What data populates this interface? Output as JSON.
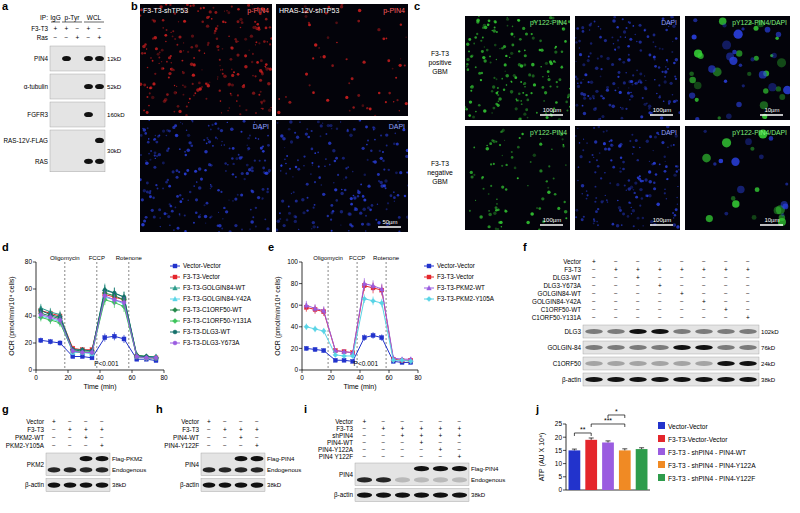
{
  "panel_letters": [
    "a",
    "b",
    "c",
    "d",
    "e",
    "f",
    "g",
    "h",
    "i",
    "j"
  ],
  "blots": [
    {
      "header_prefix": "IP:",
      "groups": [
        {
          "label": "IgG",
          "span": 1
        },
        {
          "label": "p-Tyr",
          "span": 2
        },
        {
          "label": "WCL",
          "span": 2
        }
      ],
      "conditions": [
        {
          "label": "F3-T3",
          "marks": [
            "+",
            "+",
            "−",
            "+",
            "−"
          ]
        },
        {
          "label": "Ras",
          "marks": [
            "−",
            "−",
            "+",
            "−",
            "+"
          ]
        }
      ],
      "rows": [
        {
          "left": [
            "PIN4"
          ],
          "right": [
            "12kD"
          ]
        },
        {
          "left": [
            "α-tubulin"
          ],
          "right": [
            "52kD"
          ]
        },
        {
          "left": [
            "FGFR3"
          ],
          "right": [
            "160kD"
          ]
        },
        {
          "left": [
            "RAS-12V-FLAG",
            "RAS"
          ],
          "right": [
            "30kD"
          ]
        }
      ]
    },
    {
      "conditions": [
        {
          "label": "Vector",
          "marks": [
            "+",
            "−",
            "−",
            "−",
            "−",
            "−",
            "−",
            "−"
          ]
        },
        {
          "label": "F3-T3",
          "marks": [
            "−",
            "+",
            "+",
            "+",
            "+",
            "+",
            "+",
            "+"
          ]
        },
        {
          "label": "DLG3-WT",
          "marks": [
            "−",
            "−",
            "+",
            "−",
            "−",
            "−",
            "−",
            "−"
          ]
        },
        {
          "label": "DLG3-Y673A",
          "marks": [
            "−",
            "−",
            "−",
            "+",
            "−",
            "−",
            "−",
            "−"
          ]
        },
        {
          "label": "GOLGIN84-WT",
          "marks": [
            "−",
            "−",
            "−",
            "−",
            "+",
            "−",
            "−",
            "−"
          ]
        },
        {
          "label": "GOLGIN84-Y42A",
          "marks": [
            "−",
            "−",
            "−",
            "−",
            "−",
            "+",
            "−",
            "−"
          ]
        },
        {
          "label": "C1ORF50-WT",
          "marks": [
            "−",
            "−",
            "−",
            "−",
            "−",
            "−",
            "+",
            "−"
          ]
        },
        {
          "label": "C1ORF50-Y131A",
          "marks": [
            "−",
            "−",
            "−",
            "−",
            "−",
            "−",
            "−",
            "+"
          ]
        }
      ],
      "rows": [
        {
          "left": [
            "DLG3"
          ],
          "right": [
            "102kD"
          ]
        },
        {
          "left": [
            "GOLGIN-84"
          ],
          "right": [
            "76kD"
          ]
        },
        {
          "left": [
            "C1ORF50"
          ],
          "right": [
            "24kD"
          ]
        },
        {
          "left": [
            "β-actin"
          ],
          "right": [
            "38kD"
          ]
        }
      ]
    },
    {
      "conditions": [
        {
          "label": "Vector",
          "marks": [
            "+",
            "−",
            "−",
            "−"
          ]
        },
        {
          "label": "F3-T3",
          "marks": [
            "−",
            "+",
            "+",
            "+"
          ]
        },
        {
          "label": "PKM2-WT",
          "marks": [
            "−",
            "−",
            "+",
            "−"
          ]
        },
        {
          "label": "PKM2-Y105A",
          "marks": [
            "−",
            "−",
            "−",
            "+"
          ]
        }
      ],
      "rows": [
        {
          "left": [
            "PKM2"
          ],
          "right": [
            "Flag-PKM2",
            "Endogenous"
          ]
        },
        {
          "left": [
            "β-actin"
          ],
          "right": [
            "38kD"
          ]
        }
      ]
    },
    {
      "conditions": [
        {
          "label": "Vector",
          "marks": [
            "+",
            "−",
            "−",
            "−"
          ]
        },
        {
          "label": "F3-T3",
          "marks": [
            "−",
            "+",
            "+",
            "+"
          ]
        },
        {
          "label": "PIN4-WT",
          "marks": [
            "−",
            "−",
            "+",
            "−"
          ]
        },
        {
          "label": "PIN4-Y122F",
          "marks": [
            "−",
            "−",
            "−",
            "+"
          ]
        }
      ],
      "rows": [
        {
          "left": [
            "PIN4"
          ],
          "right": [
            "Flag-PIN4",
            "Endogenous"
          ]
        },
        {
          "left": [
            "β-actin"
          ],
          "right": [
            "38kD"
          ]
        }
      ]
    },
    {
      "conditions": [
        {
          "label": "Vector",
          "marks": [
            "+",
            "−",
            "−",
            "−",
            "−",
            "−"
          ]
        },
        {
          "label": "F3-T3",
          "marks": [
            "−",
            "+",
            "+",
            "+",
            "+",
            "+"
          ]
        },
        {
          "label": "shPIN4",
          "marks": [
            "−",
            "−",
            "+",
            "+",
            "+",
            "+"
          ]
        },
        {
          "label": "PIN4-WT",
          "marks": [
            "−",
            "−",
            "−",
            "+",
            "−",
            "−"
          ]
        },
        {
          "label": "PIN4-Y122A",
          "marks": [
            "−",
            "−",
            "−",
            "−",
            "+",
            "−"
          ]
        },
        {
          "label": "PIN4 Y122F",
          "marks": [
            "−",
            "−",
            "−",
            "−",
            "−",
            "+"
          ]
        }
      ],
      "rows": [
        {
          "left": [
            "PIN4"
          ],
          "right": [
            "Flag-PIN4",
            "Endogenous"
          ]
        },
        {
          "left": [
            "β-actin"
          ],
          "right": [
            "38kD"
          ]
        }
      ]
    }
  ],
  "images": {
    "b": {
      "columns": [
        "F3-T3-shTP53",
        "HRAS-12V-shTP53"
      ],
      "rows": [
        {
          "stain": "p-PIN4",
          "colors": [
            "#d42020"
          ]
        },
        {
          "stain": "DAPI",
          "colors": [
            "#2a40e0"
          ]
        }
      ],
      "scale_bar": "50µm"
    },
    "c": {
      "rows": [
        "F3-T3 positive GBM",
        "F3-T3 negative GBM"
      ],
      "columns": [
        {
          "stain": "pY122-PIN4",
          "colors": [
            "#35d035"
          ],
          "scale_bar": "100µm"
        },
        {
          "stain": "DAPI",
          "colors": [
            "#2a40e0"
          ],
          "scale_bar": "100µm"
        },
        {
          "stain": "pY122-PIN4/DAPI",
          "colors": [
            "#35d035",
            "#2a40e0"
          ],
          "scale_bar": "10µm"
        }
      ]
    }
  },
  "chart_data": [
    {
      "type": "line",
      "xlabel": "Time (min)",
      "ylabel": "OCR (pmol/min/10⁴ cells)",
      "x": [
        3,
        9,
        15,
        23,
        29,
        35,
        43,
        49,
        55,
        63,
        69,
        75
      ],
      "xlim": [
        0,
        80
      ],
      "xticks": [
        0,
        20,
        40,
        60,
        80
      ],
      "ylim": [
        0,
        80
      ],
      "yticks": [
        0,
        20,
        40,
        60,
        80
      ],
      "injections": [
        {
          "label": "Oligomycin",
          "x": 18
        },
        {
          "label": "FCCP",
          "x": 38
        },
        {
          "label": "Rotenone",
          "x": 58
        }
      ],
      "stat_label": "P<0.001",
      "legend": "right",
      "series": [
        {
          "name": "Vector-Vector",
          "color": "#2233cc",
          "marker": "square",
          "values": [
            22,
            21,
            20,
            10,
            10,
            9,
            24,
            25,
            23,
            8,
            8,
            7
          ],
          "errors": [
            2,
            2,
            2,
            1,
            1,
            1,
            3,
            3,
            3,
            1,
            1,
            1
          ]
        },
        {
          "name": "F3-T3-Vector",
          "color": "#e4262c",
          "marker": "square",
          "values": [
            44,
            42,
            40,
            16,
            15,
            15,
            56,
            54,
            52,
            10,
            9,
            9
          ],
          "errors": [
            3,
            3,
            3,
            2,
            2,
            2,
            4,
            4,
            4,
            2,
            2,
            2
          ]
        },
        {
          "name": "F3-T3-GOLGIN84-WT",
          "color": "#2e9c8c",
          "marker": "triangle",
          "values": [
            46,
            43,
            41,
            14,
            13,
            13,
            60,
            57,
            54,
            11,
            10,
            10
          ],
          "errors": [
            3,
            3,
            3,
            2,
            2,
            2,
            4,
            4,
            4,
            2,
            2,
            2
          ]
        },
        {
          "name": "F3-T3-GOLGIN84-Y42A",
          "color": "#58d4e6",
          "marker": "triangle",
          "values": [
            40,
            38,
            36,
            13,
            13,
            12,
            54,
            52,
            49,
            10,
            9,
            9
          ],
          "errors": [
            3,
            3,
            3,
            2,
            2,
            2,
            4,
            4,
            4,
            2,
            2,
            2
          ]
        },
        {
          "name": "F3-T3-C1ORF50-WT",
          "color": "#23884a",
          "marker": "diamond",
          "values": [
            42,
            40,
            38,
            15,
            14,
            14,
            57,
            55,
            52,
            11,
            10,
            9
          ],
          "errors": [
            3,
            3,
            3,
            2,
            2,
            2,
            4,
            4,
            4,
            2,
            2,
            2
          ]
        },
        {
          "name": "F3-T3-C1ORF50-Y131A",
          "color": "#3cc45a",
          "marker": "diamond",
          "values": [
            39,
            37,
            35,
            14,
            13,
            13,
            52,
            50,
            47,
            10,
            9,
            9
          ],
          "errors": [
            3,
            3,
            3,
            2,
            2,
            2,
            4,
            4,
            4,
            2,
            2,
            2
          ]
        },
        {
          "name": "F3-T3-DLG3-WT",
          "color": "#14706a",
          "marker": "circle",
          "values": [
            44,
            41,
            39,
            15,
            15,
            14,
            59,
            57,
            54,
            10,
            10,
            9
          ],
          "errors": [
            3,
            3,
            3,
            2,
            2,
            2,
            4,
            4,
            4,
            2,
            2,
            2
          ]
        },
        {
          "name": "F3-T3-DLG3-Y673A",
          "color": "#9a5ce0",
          "marker": "circle",
          "values": [
            41,
            39,
            37,
            14,
            13,
            13,
            55,
            52,
            50,
            10,
            9,
            9
          ],
          "errors": [
            3,
            3,
            3,
            2,
            2,
            2,
            4,
            4,
            4,
            2,
            2,
            2
          ]
        }
      ]
    },
    {
      "type": "line",
      "xlabel": "Time (min)",
      "ylabel": "OCR (pmol/min/10⁴ cells)",
      "x": [
        3,
        9,
        15,
        23,
        29,
        35,
        43,
        49,
        55,
        63,
        69,
        75
      ],
      "xlim": [
        0,
        80
      ],
      "xticks": [
        0,
        20,
        40,
        60,
        80
      ],
      "ylim": [
        0,
        100
      ],
      "yticks": [
        0,
        20,
        40,
        60,
        80,
        100
      ],
      "injections": [
        {
          "label": "Oligomycin",
          "x": 18
        },
        {
          "label": "FCCP",
          "x": 38
        },
        {
          "label": "Rotenone",
          "x": 58
        }
      ],
      "stat_label": "P<0.001",
      "legend": "right",
      "series": [
        {
          "name": "Vector-Vector",
          "color": "#2233cc",
          "marker": "square",
          "values": [
            20,
            19,
            18,
            9,
            9,
            8,
            30,
            32,
            30,
            8,
            7,
            7
          ],
          "errors": [
            2,
            2,
            2,
            1,
            1,
            1,
            3,
            3,
            3,
            1,
            1,
            1
          ]
        },
        {
          "name": "F3-T3-Vector",
          "color": "#e4262c",
          "marker": "square",
          "values": [
            58,
            56,
            54,
            18,
            17,
            16,
            78,
            76,
            74,
            10,
            9,
            9
          ],
          "errors": [
            4,
            4,
            4,
            2,
            2,
            2,
            5,
            5,
            5,
            2,
            2,
            2
          ]
        },
        {
          "name": "F3-T3-PKM2-WT",
          "color": "#9a5ce0",
          "marker": "triangle",
          "values": [
            60,
            57,
            55,
            18,
            17,
            16,
            80,
            78,
            75,
            11,
            10,
            10
          ],
          "errors": [
            4,
            4,
            4,
            2,
            2,
            2,
            5,
            5,
            5,
            2,
            2,
            2
          ]
        },
        {
          "name": "F3-T3-PKM2-Y105A",
          "color": "#58d4e6",
          "marker": "diamond",
          "values": [
            40,
            38,
            36,
            14,
            13,
            13,
            66,
            64,
            62,
            9,
            9,
            8
          ],
          "errors": [
            3,
            3,
            3,
            2,
            2,
            2,
            4,
            4,
            4,
            2,
            2,
            2
          ]
        }
      ]
    },
    {
      "type": "bar",
      "ylabel": "ATP (AU X 10⁴)",
      "categories": [
        "Vector-Vector",
        "F3-T3-Vector-Vector",
        "F3-T3 - shPIN4 - PIN4-WT",
        "F3-T3 - shPIN4 - PIN4-Y122A",
        "F3-T3 - shPIN4 - PIN4-Y122F"
      ],
      "values": [
        15,
        19,
        18,
        15,
        15.5
      ],
      "errors": [
        0.5,
        0.7,
        0.6,
        0.6,
        0.5
      ],
      "colors": [
        "#2233cc",
        "#e4262c",
        "#9a5ce0",
        "#f08a24",
        "#2e9c4c"
      ],
      "ylim": [
        0,
        25
      ],
      "yticks": [
        0,
        5,
        10,
        15,
        20,
        25
      ],
      "legend": "right",
      "tick_labels": "y",
      "comparisons": [
        {
          "label": "**",
          "pair": [
            0,
            1
          ]
        },
        {
          "label": "***",
          "pair": [
            1,
            3
          ]
        },
        {
          "label": "*",
          "pair": [
            2,
            3
          ]
        }
      ]
    }
  ]
}
